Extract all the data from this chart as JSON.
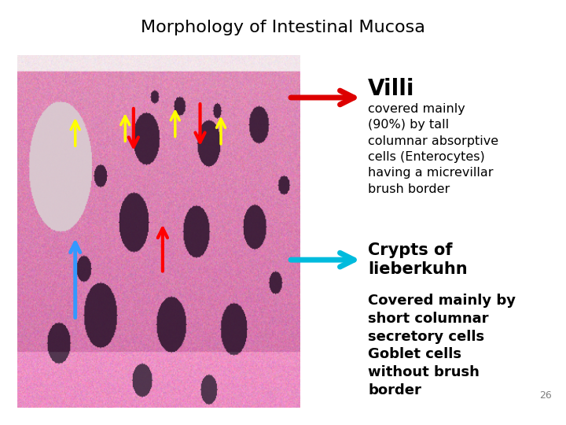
{
  "title": "Morphology of Intestinal Mucosa",
  "title_fontsize": 16,
  "background_color": "#ffffff",
  "villi_arrow_color": "#dd0000",
  "crypts_arrow_color": "#00bbdd",
  "villi_label": "Villi",
  "villi_label_fontsize": 20,
  "villi_text": "covered mainly\n(90%) by tall\ncolumnar absorptive\ncells (Enterocytes)\nhaving a micrevillar\nbrush border",
  "villi_text_fontsize": 11.5,
  "crypts_label": "Crypts of\nlieberkuhn",
  "crypts_label_fontsize": 15,
  "crypts_text": "Covered mainly by\nshort columnar\nsecretory cells\nGoblet cells\nwithout brush\nborder",
  "crypts_text_fontsize": 13,
  "page_number": "26",
  "page_number_fontsize": 9
}
